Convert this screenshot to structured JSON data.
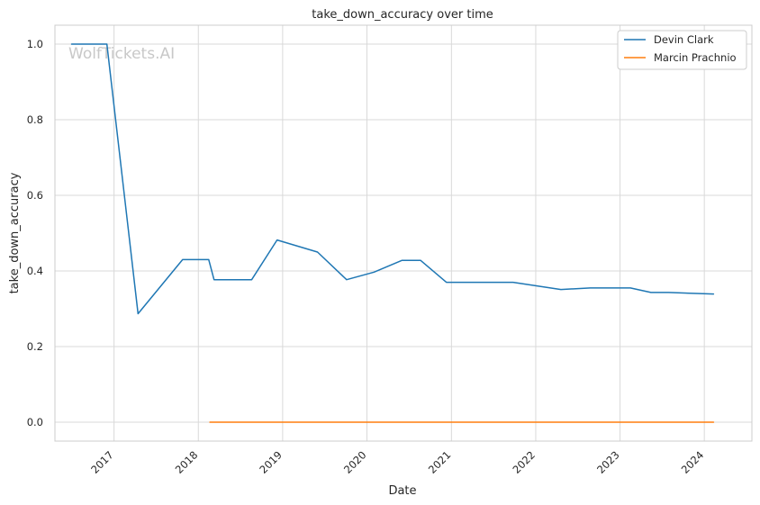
{
  "chart_data": {
    "type": "line",
    "title": "take_down_accuracy over time",
    "xlabel": "Date",
    "ylabel": "take_down_accuracy",
    "watermark": "WolfTickets.AI",
    "xlim": [
      "2016-04-20",
      "2024-07-25"
    ],
    "ylim": [
      -0.05,
      1.05
    ],
    "x_ticks": [
      "2017-01-01",
      "2018-01-01",
      "2019-01-01",
      "2020-01-01",
      "2021-01-01",
      "2022-01-01",
      "2023-01-01",
      "2024-01-01"
    ],
    "x_tick_labels": [
      "2017",
      "2018",
      "2019",
      "2020",
      "2021",
      "2022",
      "2023",
      "2024"
    ],
    "y_ticks": [
      0.0,
      0.2,
      0.4,
      0.6,
      0.8,
      1.0
    ],
    "y_tick_labels": [
      "0.0",
      "0.2",
      "0.4",
      "0.6",
      "0.8",
      "1.0"
    ],
    "grid": true,
    "legend_position": "top-right",
    "series": [
      {
        "name": "Devin Clark",
        "color": "#1f77b4",
        "points": [
          [
            "2016-07-01",
            1.0
          ],
          [
            "2016-12-01",
            1.0
          ],
          [
            "2017-04-15",
            0.287
          ],
          [
            "2017-10-25",
            0.43
          ],
          [
            "2018-02-15",
            0.43
          ],
          [
            "2018-03-10",
            0.377
          ],
          [
            "2018-08-20",
            0.377
          ],
          [
            "2018-12-08",
            0.482
          ],
          [
            "2019-06-01",
            0.45
          ],
          [
            "2019-10-05",
            0.377
          ],
          [
            "2020-02-01",
            0.397
          ],
          [
            "2020-06-01",
            0.428
          ],
          [
            "2020-08-20",
            0.428
          ],
          [
            "2020-12-10",
            0.37
          ],
          [
            "2021-09-25",
            0.37
          ],
          [
            "2022-04-20",
            0.351
          ],
          [
            "2022-08-25",
            0.355
          ],
          [
            "2023-02-15",
            0.355
          ],
          [
            "2023-05-15",
            0.343
          ],
          [
            "2023-07-30",
            0.343
          ],
          [
            "2024-02-10",
            0.339
          ]
        ]
      },
      {
        "name": "Marcin Prachnio",
        "color": "#ff7f0e",
        "points": [
          [
            "2018-02-20",
            0.0
          ],
          [
            "2024-02-10",
            0.0
          ]
        ]
      }
    ]
  }
}
